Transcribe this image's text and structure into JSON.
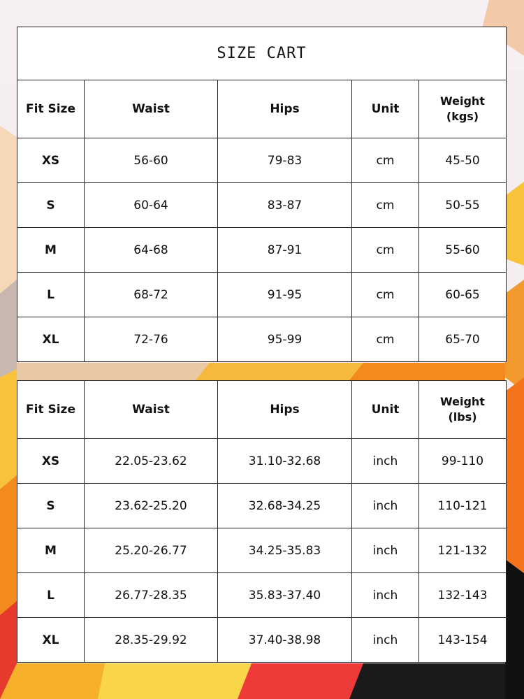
{
  "title": "SIZE CART",
  "metric": {
    "headers": [
      "Fit Size",
      "Waist",
      "Hips",
      "Unit",
      "Weight",
      "(kgs)"
    ],
    "rows": [
      [
        "XS",
        "56-60",
        "79-83",
        "cm",
        "45-50"
      ],
      [
        "S",
        "60-64",
        "83-87",
        "cm",
        "50-55"
      ],
      [
        "M",
        "64-68",
        "87-91",
        "cm",
        "55-60"
      ],
      [
        "L",
        "68-72",
        "91-95",
        "cm",
        "60-65"
      ],
      [
        "XL",
        "72-76",
        "95-99",
        "cm",
        "65-70"
      ]
    ]
  },
  "imperial": {
    "headers": [
      "Fit Size",
      "Waist",
      "Hips",
      "Unit",
      "Weight",
      "(lbs)"
    ],
    "rows": [
      [
        "XS",
        "22.05-23.62",
        "31.10-32.68",
        "inch",
        "99-110"
      ],
      [
        "S",
        "23.62-25.20",
        "32.68-34.25",
        "inch",
        "110-121"
      ],
      [
        "M",
        "25.20-26.77",
        "34.25-35.83",
        "inch",
        "121-132"
      ],
      [
        "L",
        "26.77-28.35",
        "35.83-37.40",
        "inch",
        "132-143"
      ],
      [
        "XL",
        "28.35-29.92",
        "37.40-38.98",
        "inch",
        "143-154"
      ]
    ]
  }
}
